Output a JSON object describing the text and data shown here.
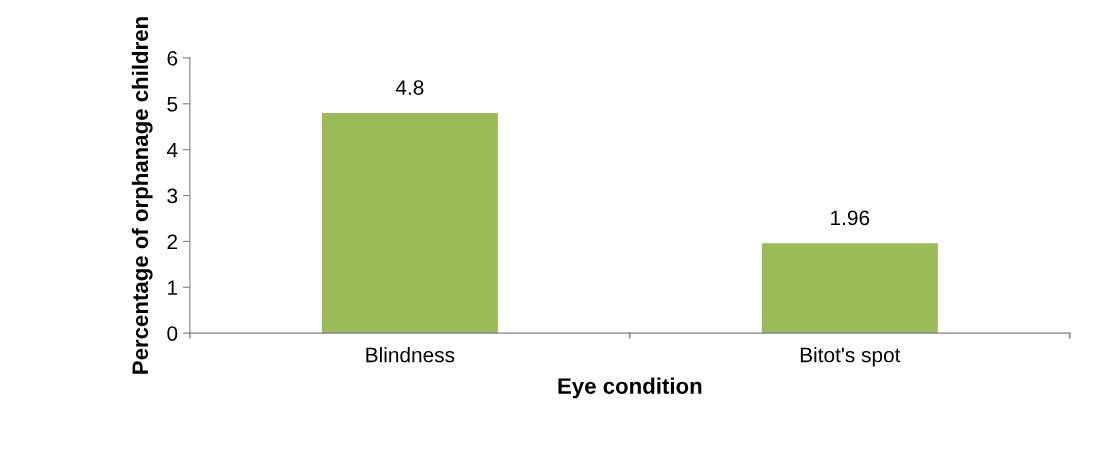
{
  "chart_data": {
    "type": "bar",
    "xlabel": "Eye condition",
    "ylabel": "Percentage of orphanage children",
    "categories": [
      "Blindness",
      "Bitot's spot"
    ],
    "values": [
      4.8,
      1.96
    ],
    "color": "#9bbb59",
    "ylim": [
      0,
      6
    ],
    "yticks": [
      0,
      1,
      2,
      3,
      4,
      5,
      6
    ],
    "grid": false,
    "data_labels": true
  }
}
